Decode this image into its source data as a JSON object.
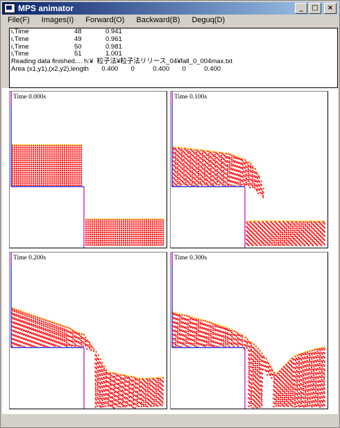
{
  "window": {
    "title": "MPS animator"
  },
  "menu": [
    "File(F)",
    "Images(I)",
    "Forward(O)",
    "Backward(B)",
    "Deguq(D)"
  ],
  "caption_buttons": {
    "minimize": "_",
    "maximize": "□",
    "close": "×"
  },
  "output": {
    "time_rows": [
      {
        "label": "i,Time",
        "index": "48",
        "time": "0.941"
      },
      {
        "label": "i,Time",
        "index": "49",
        "time": "0.961"
      },
      {
        "label": "i,Time",
        "index": "50",
        "time": "0.981"
      },
      {
        "label": "i,Time",
        "index": "51",
        "time": "1.001"
      }
    ],
    "reading_line": "Reading data finished.... h:¥  粒子法¥粒子法リリース_04¥fall_0_004max.txt",
    "area_line": "Area (x1,y1),(x2,y2),length       0.400       0          0.400       0          0.400"
  },
  "panels": [
    {
      "time_label": "Time 0.000s"
    },
    {
      "time_label": "Time 0.100s"
    },
    {
      "time_label": "Time 0.200s"
    },
    {
      "time_label": "Time 0.300s"
    }
  ],
  "colors": {
    "particle": "#ff1a1a",
    "particle_dot": "#ffcc00",
    "wall": "#3333dd",
    "wall_edge": "#cc33cc",
    "frame": "#000000",
    "titlebar_start": "#0a246a"
  }
}
